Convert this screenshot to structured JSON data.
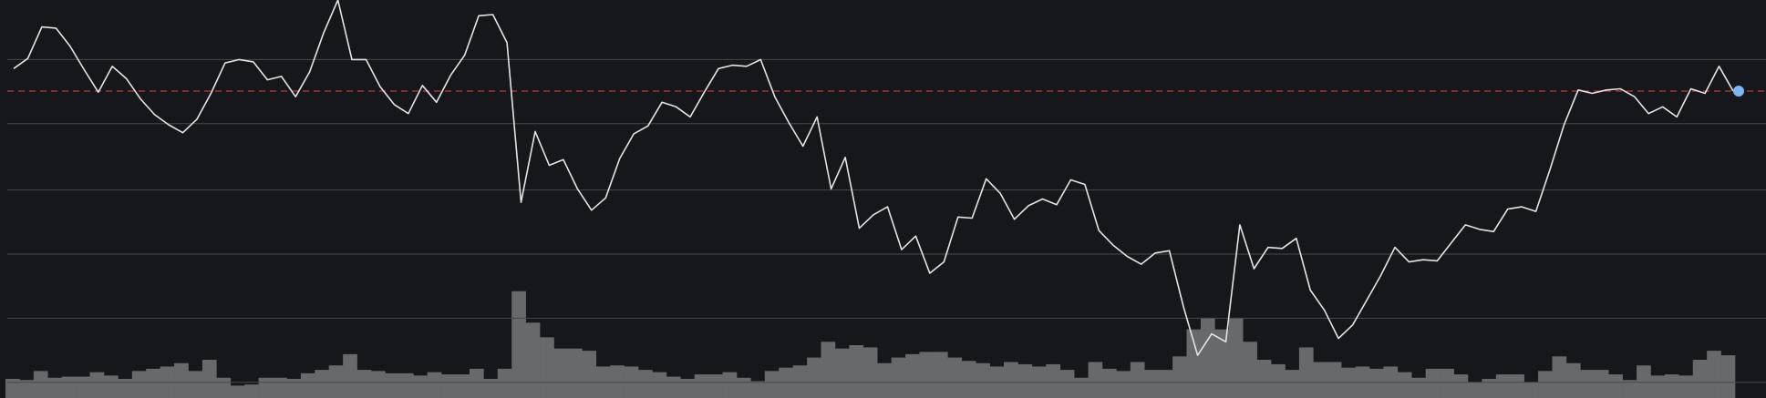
{
  "chart_data": [
    {
      "type": "line",
      "color": "#e4e4e6",
      "ylim": [
        0,
        354
      ],
      "yticks": [
        301,
        244,
        185,
        128,
        71,
        14
      ],
      "grid": true,
      "grid_color": "#45484d",
      "reference_line": 273,
      "reference_color": "#c0392b",
      "last_point_color": "#7db7f3",
      "values": [
        293,
        302,
        330,
        329,
        313,
        292,
        272,
        295,
        284,
        266,
        252,
        243,
        236,
        248,
        271,
        298,
        301,
        299,
        283,
        286,
        268,
        290,
        325,
        354,
        301,
        301,
        277,
        261,
        253,
        278,
        263,
        287,
        305,
        340,
        341,
        316,
        174,
        237,
        207,
        212,
        186,
        167,
        178,
        213,
        235,
        242,
        263,
        259,
        250,
        272,
        293,
        296,
        295,
        301,
        268,
        245,
        224,
        250,
        186,
        214,
        151,
        163,
        170,
        132,
        144,
        111,
        121,
        161,
        160,
        195,
        182,
        159,
        171,
        177,
        172,
        194,
        190,
        149,
        136,
        126,
        119,
        129,
        131,
        81,
        38,
        57,
        50,
        154,
        115,
        134,
        133,
        142,
        96,
        78,
        53,
        65,
        87,
        109,
        134,
        121,
        123,
        122,
        138,
        154,
        150,
        148,
        168,
        170,
        166,
        203,
        243,
        274,
        271,
        274,
        275,
        268,
        253,
        259,
        250,
        275,
        271,
        295,
        273
      ]
    },
    {
      "type": "bar",
      "color": "#67696c",
      "ylim": [
        0,
        354
      ],
      "values": [
        17,
        16,
        24,
        18,
        19,
        19,
        23,
        20,
        17,
        24,
        26,
        28,
        31,
        24,
        34,
        18,
        11,
        12,
        18,
        18,
        17,
        22,
        25,
        29,
        39,
        25,
        24,
        22,
        22,
        20,
        23,
        21,
        21,
        26,
        17,
        26,
        95,
        67,
        54,
        44,
        44,
        42,
        28,
        29,
        28,
        25,
        23,
        19,
        17,
        21,
        21,
        23,
        18,
        15,
        24,
        27,
        29,
        36,
        50,
        44,
        47,
        45,
        31,
        36,
        39,
        41,
        41,
        36,
        33,
        31,
        28,
        32,
        30,
        28,
        30,
        25,
        18,
        32,
        26,
        24,
        32,
        25,
        25,
        37,
        61,
        71,
        61,
        71,
        50,
        34,
        30,
        25,
        45,
        32,
        32,
        27,
        28,
        26,
        28,
        23,
        18,
        26,
        26,
        21,
        14,
        17,
        21,
        21,
        14,
        24,
        37,
        31,
        25,
        25,
        21,
        16,
        29,
        20,
        21,
        20,
        34,
        42,
        38
      ]
    }
  ]
}
